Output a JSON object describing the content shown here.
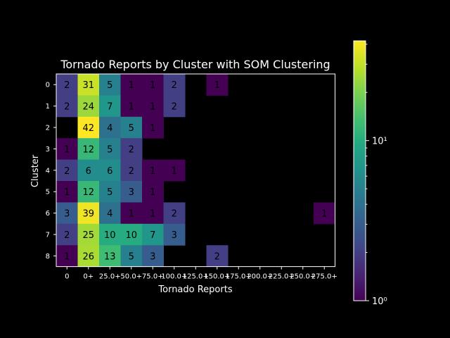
{
  "chart_data": {
    "type": "heatmap",
    "title": "Tornado Reports by Cluster with SOM Clustering",
    "xlabel": "Tornado Reports",
    "ylabel": "Cluster",
    "x_categories": [
      "0",
      "0+",
      "25.0+",
      "50.0+",
      "75.0+",
      "100.0+",
      "125.0+",
      "150.0+",
      "175.0+",
      "200.0+",
      "225.0+",
      "250.0+",
      "275.0+"
    ],
    "y_categories": [
      "0",
      "1",
      "2",
      "3",
      "4",
      "5",
      "6",
      "7",
      "8"
    ],
    "values": [
      [
        2,
        31,
        5,
        1,
        1,
        2,
        null,
        1,
        null,
        null,
        null,
        null,
        null
      ],
      [
        2,
        24,
        7,
        1,
        1,
        2,
        null,
        null,
        null,
        null,
        null,
        null,
        null
      ],
      [
        null,
        42,
        4,
        5,
        1,
        null,
        null,
        null,
        null,
        null,
        null,
        null,
        null
      ],
      [
        1,
        12,
        5,
        2,
        null,
        null,
        null,
        null,
        null,
        null,
        null,
        null,
        null
      ],
      [
        2,
        6,
        6,
        2,
        1,
        1,
        null,
        null,
        null,
        null,
        null,
        null,
        null
      ],
      [
        1,
        12,
        5,
        3,
        1,
        null,
        null,
        null,
        null,
        null,
        null,
        null,
        null
      ],
      [
        3,
        39,
        4,
        1,
        1,
        2,
        null,
        null,
        null,
        null,
        null,
        null,
        1
      ],
      [
        2,
        25,
        10,
        10,
        7,
        3,
        null,
        null,
        null,
        null,
        null,
        null,
        null
      ],
      [
        1,
        26,
        13,
        5,
        3,
        null,
        null,
        2,
        null,
        null,
        null,
        null,
        null
      ]
    ],
    "colorscale": "viridis",
    "color_scale_type": "log",
    "color_range": [
      1,
      42
    ],
    "colorbar_ticks": [
      {
        "value": 1,
        "label": "10⁰"
      },
      {
        "value": 10,
        "label": "10¹"
      }
    ],
    "background_color": "#000000",
    "text_color": "#ffffff"
  }
}
